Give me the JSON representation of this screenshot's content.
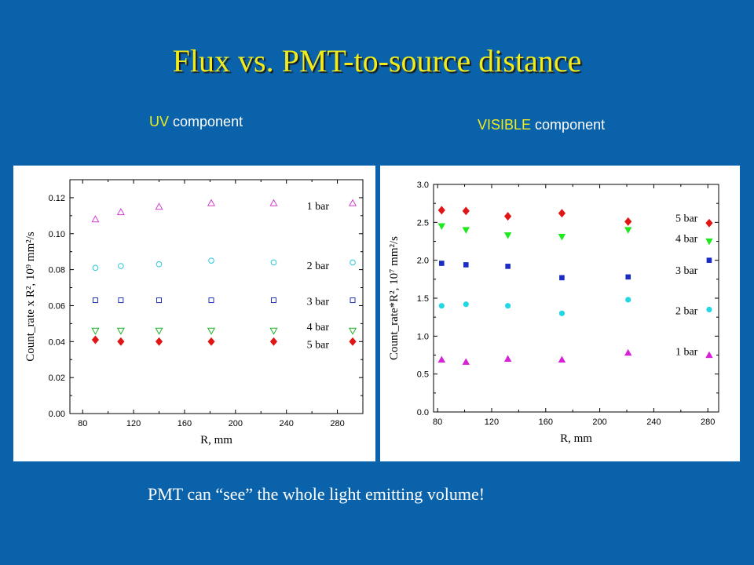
{
  "title": "Flux vs. PMT-to-source distance",
  "labels": {
    "uv_prefix": "UV",
    "uv_suffix": " component",
    "vis_prefix": "VISIBLE",
    "vis_suffix": " component"
  },
  "footnote": "PMT can “see” the whole light emitting volume!",
  "colors": {
    "background": "#0a62aa",
    "title": "#f0ec1c",
    "accent_text": "#f0ec1c"
  },
  "chart_data": [
    {
      "type": "scatter",
      "xlabel": "R, mm",
      "ylabel": "Count_rate x R², 10⁹ mm²/s",
      "xlim": [
        70,
        300
      ],
      "ylim": [
        0.0,
        0.13
      ],
      "xticks": [
        "80",
        "120",
        "160",
        "200",
        "240",
        "280"
      ],
      "yticks": [
        "0.00",
        "0.02",
        "0.04",
        "0.06",
        "0.08",
        "0.10",
        "0.12"
      ],
      "grid": false,
      "series": [
        {
          "name": "1 bar",
          "marker": "triangle-up",
          "filled": false,
          "color": "#d23fd2",
          "x": [
            90,
            110,
            140,
            181,
            230,
            292
          ],
          "values": [
            0.108,
            0.112,
            0.115,
            0.117,
            0.117,
            0.117
          ]
        },
        {
          "name": "2 bar",
          "marker": "circle",
          "filled": false,
          "color": "#26c9d9",
          "x": [
            90,
            110,
            140,
            181,
            230,
            292
          ],
          "values": [
            0.081,
            0.082,
            0.083,
            0.085,
            0.084,
            0.084
          ]
        },
        {
          "name": "3 bar",
          "marker": "square",
          "filled": false,
          "color": "#2233b8",
          "x": [
            90,
            110,
            140,
            181,
            230,
            292
          ],
          "values": [
            0.063,
            0.063,
            0.063,
            0.063,
            0.063,
            0.063
          ]
        },
        {
          "name": "4 bar",
          "marker": "triangle-down",
          "filled": false,
          "color": "#21b025",
          "x": [
            90,
            110,
            140,
            181,
            230,
            292
          ],
          "values": [
            0.046,
            0.046,
            0.046,
            0.046,
            0.046,
            0.046
          ]
        },
        {
          "name": "5 bar",
          "marker": "diamond",
          "filled": true,
          "color": "#e11515",
          "x": [
            90,
            110,
            140,
            181,
            230,
            292
          ],
          "values": [
            0.041,
            0.04,
            0.04,
            0.04,
            0.04,
            0.04
          ]
        }
      ],
      "annotations": [
        {
          "text": "1 bar",
          "x": 256,
          "y": 0.1155
        },
        {
          "text": "2 bar",
          "x": 256,
          "y": 0.0825
        },
        {
          "text": "3 bar",
          "x": 256,
          "y": 0.0625
        },
        {
          "text": "4 bar",
          "x": 256,
          "y": 0.0485
        },
        {
          "text": "5 bar",
          "x": 256,
          "y": 0.0385
        }
      ]
    },
    {
      "type": "scatter",
      "xlabel": "R, mm",
      "ylabel": "Count_rate*R², 10⁷ mm²/s",
      "xlim": [
        77,
        288
      ],
      "ylim": [
        0.0,
        3.0
      ],
      "xticks": [
        "80",
        "120",
        "160",
        "200",
        "240",
        "280"
      ],
      "yticks": [
        "0.0",
        "0.5",
        "1.0",
        "1.5",
        "2.0",
        "2.5",
        "3.0"
      ],
      "grid": false,
      "series": [
        {
          "name": "5 bar",
          "marker": "diamond",
          "filled": true,
          "color": "#e11515",
          "x": [
            83,
            101,
            132,
            172,
            221,
            281
          ],
          "values": [
            2.66,
            2.65,
            2.58,
            2.62,
            2.51,
            2.49
          ]
        },
        {
          "name": "4 bar",
          "marker": "triangle-down",
          "filled": true,
          "color": "#1ee81e",
          "x": [
            83,
            101,
            132,
            172,
            221,
            281
          ],
          "values": [
            2.45,
            2.4,
            2.33,
            2.31,
            2.4,
            2.25
          ]
        },
        {
          "name": "3 bar",
          "marker": "square",
          "filled": true,
          "color": "#1a2cc4",
          "x": [
            83,
            101,
            132,
            172,
            221,
            281
          ],
          "values": [
            1.96,
            1.94,
            1.92,
            1.77,
            1.78,
            2.0
          ]
        },
        {
          "name": "2 bar",
          "marker": "circle",
          "filled": true,
          "color": "#22d6e6",
          "x": [
            83,
            101,
            132,
            172,
            221,
            281
          ],
          "values": [
            1.4,
            1.42,
            1.4,
            1.3,
            1.48,
            1.35
          ]
        },
        {
          "name": "1 bar",
          "marker": "triangle-up",
          "filled": true,
          "color": "#d820d8",
          "x": [
            83,
            101,
            132,
            172,
            221,
            281
          ],
          "values": [
            0.69,
            0.66,
            0.7,
            0.69,
            0.78,
            0.75
          ]
        }
      ],
      "annotations": [
        {
          "text": "5 bar",
          "x": 256,
          "y": 2.56
        },
        {
          "text": "4 bar",
          "x": 256,
          "y": 2.29
        },
        {
          "text": "3 bar",
          "x": 256,
          "y": 1.87
        },
        {
          "text": "2 bar",
          "x": 256,
          "y": 1.34
        },
        {
          "text": "1 bar",
          "x": 256,
          "y": 0.8
        }
      ]
    }
  ]
}
